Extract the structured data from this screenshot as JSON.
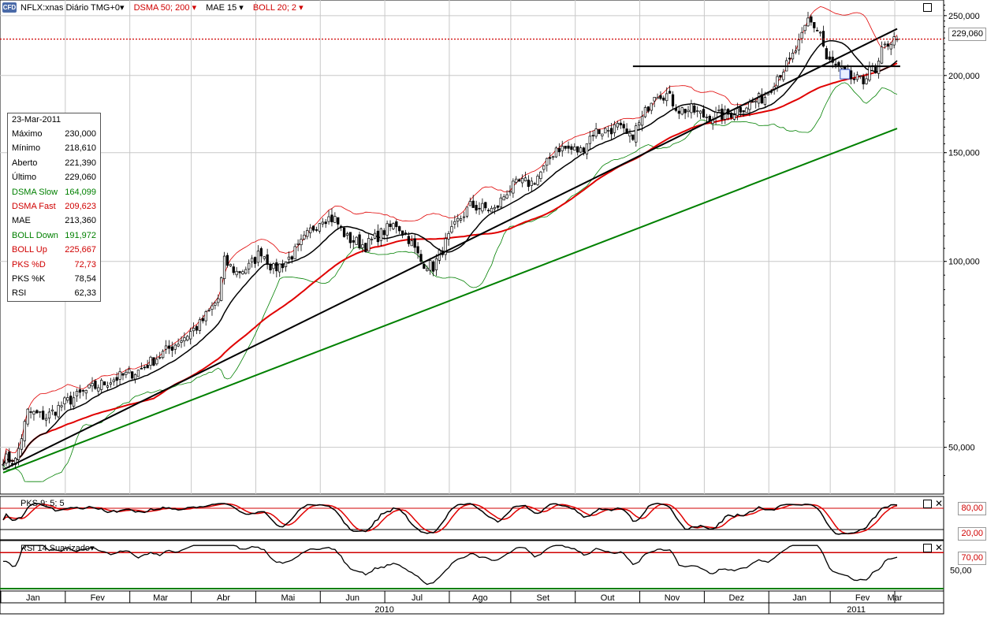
{
  "header": {
    "symbol": "NFLX:xnas Diário TMG+0",
    "ind1": "DSMA 50; 200",
    "ind2": "MAE 15",
    "ind3": "BOLL 20; 2",
    "badge": "CFD"
  },
  "sub_panels": {
    "pks_label": "PKS 9; 5; 5",
    "rsi_label": "RSI 14 Suavizado"
  },
  "info_box": {
    "date": "23-Mar-2011",
    "rows": [
      {
        "label": "Máximo",
        "value": "230,000",
        "color": "#000000"
      },
      {
        "label": "Mínimo",
        "value": "218,610",
        "color": "#000000"
      },
      {
        "label": "Aberto",
        "value": "221,390",
        "color": "#000000"
      },
      {
        "label": "Último",
        "value": "229,060",
        "color": "#000000"
      },
      {
        "label": "DSMA Slow",
        "value": "164,099",
        "color": "#008000"
      },
      {
        "label": "DSMA Fast",
        "value": "209,623",
        "color": "#d00000"
      },
      {
        "label": "MAE",
        "value": "213,360",
        "color": "#000000"
      },
      {
        "label": "BOLL Down",
        "value": "191,972",
        "color": "#008000"
      },
      {
        "label": "BOLL Up",
        "value": "225,667",
        "color": "#d00000"
      },
      {
        "label": "PKS %D",
        "value": "72,73",
        "color": "#d00000"
      },
      {
        "label": "PKS %K",
        "value": "78,54",
        "color": "#000000"
      },
      {
        "label": "RSI",
        "value": "62,33",
        "color": "#000000"
      }
    ]
  },
  "price_box": "229,060",
  "pks_boxes": {
    "upper": "80,00",
    "lower": "20,00"
  },
  "rsi_boxes": {
    "upper": "70,00",
    "lower": "50,00"
  },
  "chart_data": {
    "type": "candlestick",
    "symbol": "NFLX",
    "y_scale": "log",
    "ylim": [
      42,
      265
    ],
    "y_ticks": [
      {
        "value": 250,
        "label": "250,000"
      },
      {
        "value": 200,
        "label": "200,000"
      },
      {
        "value": 150,
        "label": "150,000"
      },
      {
        "value": 100,
        "label": "100,000"
      },
      {
        "value": 50,
        "label": "50,000"
      }
    ],
    "x_months": [
      "Jan",
      "Fev",
      "Mar",
      "Abr",
      "Mai",
      "Jun",
      "Jul",
      "Ago",
      "Set",
      "Out",
      "Nov",
      "Dez",
      "Jan",
      "Fev",
      "Mar"
    ],
    "x_years": [
      "2010",
      "2011"
    ],
    "last_price": 229.06,
    "price_anchors": [
      [
        0,
        48
      ],
      [
        4,
        47.5
      ],
      [
        8,
        57
      ],
      [
        14,
        56
      ],
      [
        20,
        59
      ],
      [
        28,
        62
      ],
      [
        36,
        64.5
      ],
      [
        44,
        66.5
      ],
      [
        52,
        71
      ],
      [
        56,
        73.5
      ],
      [
        64,
        79
      ],
      [
        70,
        87
      ],
      [
        72,
        100
      ],
      [
        76,
        96
      ],
      [
        80,
        98
      ],
      [
        84,
        104
      ],
      [
        88,
        97
      ],
      [
        92,
        100
      ],
      [
        96,
        105
      ],
      [
        100,
        112
      ],
      [
        104,
        118
      ],
      [
        108,
        117
      ],
      [
        112,
        109
      ],
      [
        118,
        106
      ],
      [
        124,
        112
      ],
      [
        128,
        115
      ],
      [
        132,
        109
      ],
      [
        136,
        100
      ],
      [
        140,
        98
      ],
      [
        144,
        107
      ],
      [
        148,
        116
      ],
      [
        152,
        123
      ],
      [
        156,
        122
      ],
      [
        160,
        121
      ],
      [
        164,
        130
      ],
      [
        168,
        134
      ],
      [
        172,
        134
      ],
      [
        176,
        141
      ],
      [
        180,
        153
      ],
      [
        184,
        152
      ],
      [
        188,
        151
      ],
      [
        192,
        162
      ],
      [
        196,
        163
      ],
      [
        200,
        165
      ],
      [
        204,
        158
      ],
      [
        208,
        170
      ],
      [
        212,
        188
      ],
      [
        216,
        186
      ],
      [
        220,
        176
      ],
      [
        224,
        176
      ],
      [
        228,
        172
      ],
      [
        232,
        172
      ],
      [
        236,
        173
      ],
      [
        240,
        177
      ],
      [
        244,
        181
      ],
      [
        248,
        185
      ],
      [
        252,
        200
      ],
      [
        256,
        210
      ],
      [
        260,
        230
      ],
      [
        262,
        246
      ],
      [
        266,
        235
      ],
      [
        268,
        212
      ],
      [
        272,
        205
      ],
      [
        276,
        198
      ],
      [
        280,
        195
      ],
      [
        282,
        208
      ],
      [
        284,
        200
      ],
      [
        286,
        218
      ],
      [
        288,
        226
      ],
      [
        291,
        229
      ]
    ],
    "series": [
      {
        "name": "DSMA Slow",
        "color": "#008000",
        "desc": "200-day smoothed moving average"
      },
      {
        "name": "DSMA Fast",
        "color": "#d00000",
        "desc": "50-day smoothed moving average"
      },
      {
        "name": "MAE",
        "color": "#000000",
        "desc": "15-day envelope average"
      },
      {
        "name": "BOLL Up",
        "color": "#d00000"
      },
      {
        "name": "BOLL Down",
        "color": "#008000"
      }
    ],
    "annotations": {
      "trendline": {
        "from": {
          "bar": 0,
          "price": 46
        },
        "to": {
          "bar": 291,
          "price": 238
        }
      },
      "horizontal_line": {
        "price": 207,
        "from_bar": 205,
        "to_bar": 292
      },
      "price_line": 229.06
    },
    "pks": {
      "levels": [
        80,
        20
      ],
      "range": [
        0,
        100
      ]
    },
    "rsi": {
      "levels": [
        70,
        50
      ],
      "range": [
        30,
        80
      ]
    }
  }
}
